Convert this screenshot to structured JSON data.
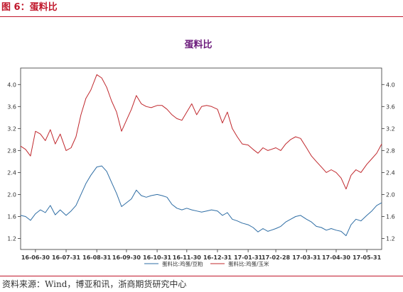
{
  "header": {
    "figure_title": "图 6：蛋料比"
  },
  "footer": {
    "source": "资料来源：Wind，博亚和讯，浙商期货研究中心"
  },
  "colors": {
    "accent": "#c0172b",
    "title": "#6b1a7b",
    "series_red": "#c0282d",
    "series_blue": "#2e6da4"
  },
  "chart_data": {
    "type": "line",
    "title": "蛋料比",
    "xlabel": "",
    "ylabel": "",
    "ylim": [
      1.0,
      4.3
    ],
    "yticks": [
      1.2,
      1.6,
      2.0,
      2.4,
      2.8,
      3.2,
      3.6,
      4.0
    ],
    "ytick_labels": [
      "1.2",
      "1.6",
      "2.0",
      "2.4",
      "2.8",
      "3.2",
      "3.6",
      "4.0"
    ],
    "xlim": [
      "2016-06-15",
      "2017-06-15"
    ],
    "xticks": [
      "2016-06-30",
      "2016-07-31",
      "2016-08-31",
      "2016-09-30",
      "2016-10-31",
      "2016-11-30",
      "2016-12-31",
      "2017-01-31",
      "2017-02-28",
      "2017-03-31",
      "2017-04-30",
      "2017-05-31"
    ],
    "xtick_labels": [
      "16-06-30",
      "16-07-31",
      "16-08-31",
      "16-09-30",
      "16-10-31",
      "16-11-30",
      "16-12-31",
      "17-01-31",
      "17-02-28",
      "17-03-31",
      "17-04-30",
      "17-05-31"
    ],
    "grid": false,
    "legend_position": "bottom-right",
    "series": [
      {
        "name": "蛋料比:鸡蛋/豆粕",
        "color": "#2e6da4",
        "points": [
          [
            "2016-06-15",
            1.62
          ],
          [
            "2016-06-20",
            1.6
          ],
          [
            "2016-06-25",
            1.53
          ],
          [
            "2016-06-30",
            1.65
          ],
          [
            "2016-07-05",
            1.72
          ],
          [
            "2016-07-10",
            1.67
          ],
          [
            "2016-07-15",
            1.8
          ],
          [
            "2016-07-20",
            1.63
          ],
          [
            "2016-07-25",
            1.72
          ],
          [
            "2016-07-31",
            1.62
          ],
          [
            "2016-08-05",
            1.7
          ],
          [
            "2016-08-10",
            1.8
          ],
          [
            "2016-08-15",
            2.0
          ],
          [
            "2016-08-20",
            2.2
          ],
          [
            "2016-08-25",
            2.35
          ],
          [
            "2016-08-31",
            2.5
          ],
          [
            "2016-09-05",
            2.52
          ],
          [
            "2016-09-10",
            2.42
          ],
          [
            "2016-09-15",
            2.22
          ],
          [
            "2016-09-20",
            2.02
          ],
          [
            "2016-09-25",
            1.78
          ],
          [
            "2016-09-30",
            1.85
          ],
          [
            "2016-10-05",
            1.92
          ],
          [
            "2016-10-10",
            2.08
          ],
          [
            "2016-10-15",
            1.98
          ],
          [
            "2016-10-20",
            1.95
          ],
          [
            "2016-10-25",
            1.98
          ],
          [
            "2016-10-31",
            2.0
          ],
          [
            "2016-11-05",
            1.98
          ],
          [
            "2016-11-10",
            1.95
          ],
          [
            "2016-11-15",
            1.82
          ],
          [
            "2016-11-20",
            1.75
          ],
          [
            "2016-11-25",
            1.72
          ],
          [
            "2016-11-30",
            1.75
          ],
          [
            "2016-12-05",
            1.72
          ],
          [
            "2016-12-10",
            1.7
          ],
          [
            "2016-12-15",
            1.68
          ],
          [
            "2016-12-20",
            1.7
          ],
          [
            "2016-12-25",
            1.72
          ],
          [
            "2016-12-31",
            1.7
          ],
          [
            "2017-01-05",
            1.62
          ],
          [
            "2017-01-10",
            1.67
          ],
          [
            "2017-01-15",
            1.55
          ],
          [
            "2017-01-20",
            1.52
          ],
          [
            "2017-01-25",
            1.48
          ],
          [
            "2017-01-31",
            1.45
          ],
          [
            "2017-02-05",
            1.4
          ],
          [
            "2017-02-10",
            1.32
          ],
          [
            "2017-02-15",
            1.38
          ],
          [
            "2017-02-20",
            1.33
          ],
          [
            "2017-02-28",
            1.38
          ],
          [
            "2017-03-05",
            1.42
          ],
          [
            "2017-03-10",
            1.5
          ],
          [
            "2017-03-15",
            1.55
          ],
          [
            "2017-03-20",
            1.6
          ],
          [
            "2017-03-25",
            1.62
          ],
          [
            "2017-03-31",
            1.55
          ],
          [
            "2017-04-05",
            1.5
          ],
          [
            "2017-04-10",
            1.42
          ],
          [
            "2017-04-15",
            1.4
          ],
          [
            "2017-04-20",
            1.35
          ],
          [
            "2017-04-25",
            1.38
          ],
          [
            "2017-04-30",
            1.35
          ],
          [
            "2017-05-05",
            1.33
          ],
          [
            "2017-05-10",
            1.25
          ],
          [
            "2017-05-15",
            1.45
          ],
          [
            "2017-05-20",
            1.55
          ],
          [
            "2017-05-25",
            1.52
          ],
          [
            "2017-05-31",
            1.62
          ],
          [
            "2017-06-05",
            1.7
          ],
          [
            "2017-06-10",
            1.8
          ],
          [
            "2017-06-15",
            1.85
          ]
        ]
      },
      {
        "name": "蛋料比:鸡蛋/玉米",
        "color": "#c0282d",
        "points": [
          [
            "2016-06-15",
            2.88
          ],
          [
            "2016-06-20",
            2.82
          ],
          [
            "2016-06-25",
            2.7
          ],
          [
            "2016-06-30",
            3.15
          ],
          [
            "2016-07-05",
            3.1
          ],
          [
            "2016-07-10",
            2.98
          ],
          [
            "2016-07-15",
            3.18
          ],
          [
            "2016-07-20",
            2.92
          ],
          [
            "2016-07-25",
            3.1
          ],
          [
            "2016-07-31",
            2.8
          ],
          [
            "2016-08-05",
            2.85
          ],
          [
            "2016-08-10",
            3.05
          ],
          [
            "2016-08-15",
            3.45
          ],
          [
            "2016-08-20",
            3.75
          ],
          [
            "2016-08-25",
            3.9
          ],
          [
            "2016-08-31",
            4.18
          ],
          [
            "2016-09-05",
            4.12
          ],
          [
            "2016-09-10",
            3.95
          ],
          [
            "2016-09-15",
            3.7
          ],
          [
            "2016-09-20",
            3.5
          ],
          [
            "2016-09-25",
            3.15
          ],
          [
            "2016-09-30",
            3.35
          ],
          [
            "2016-10-05",
            3.55
          ],
          [
            "2016-10-10",
            3.8
          ],
          [
            "2016-10-15",
            3.65
          ],
          [
            "2016-10-20",
            3.6
          ],
          [
            "2016-10-25",
            3.58
          ],
          [
            "2016-10-31",
            3.62
          ],
          [
            "2016-11-05",
            3.62
          ],
          [
            "2016-11-10",
            3.55
          ],
          [
            "2016-11-15",
            3.45
          ],
          [
            "2016-11-20",
            3.38
          ],
          [
            "2016-11-25",
            3.35
          ],
          [
            "2016-11-30",
            3.5
          ],
          [
            "2016-12-05",
            3.65
          ],
          [
            "2016-12-10",
            3.45
          ],
          [
            "2016-12-15",
            3.6
          ],
          [
            "2016-12-20",
            3.62
          ],
          [
            "2016-12-25",
            3.6
          ],
          [
            "2016-12-31",
            3.55
          ],
          [
            "2017-01-05",
            3.3
          ],
          [
            "2017-01-10",
            3.5
          ],
          [
            "2017-01-15",
            3.2
          ],
          [
            "2017-01-20",
            3.05
          ],
          [
            "2017-01-25",
            2.92
          ],
          [
            "2017-01-31",
            2.9
          ],
          [
            "2017-02-05",
            2.82
          ],
          [
            "2017-02-10",
            2.75
          ],
          [
            "2017-02-15",
            2.85
          ],
          [
            "2017-02-20",
            2.8
          ],
          [
            "2017-02-28",
            2.85
          ],
          [
            "2017-03-05",
            2.8
          ],
          [
            "2017-03-10",
            2.92
          ],
          [
            "2017-03-15",
            3.0
          ],
          [
            "2017-03-20",
            3.05
          ],
          [
            "2017-03-25",
            3.02
          ],
          [
            "2017-03-31",
            2.85
          ],
          [
            "2017-04-05",
            2.7
          ],
          [
            "2017-04-10",
            2.6
          ],
          [
            "2017-04-15",
            2.5
          ],
          [
            "2017-04-20",
            2.4
          ],
          [
            "2017-04-25",
            2.45
          ],
          [
            "2017-04-30",
            2.4
          ],
          [
            "2017-05-05",
            2.3
          ],
          [
            "2017-05-10",
            2.1
          ],
          [
            "2017-05-15",
            2.35
          ],
          [
            "2017-05-20",
            2.45
          ],
          [
            "2017-05-25",
            2.4
          ],
          [
            "2017-05-31",
            2.55
          ],
          [
            "2017-06-05",
            2.65
          ],
          [
            "2017-06-10",
            2.75
          ],
          [
            "2017-06-15",
            2.92
          ]
        ]
      }
    ]
  }
}
